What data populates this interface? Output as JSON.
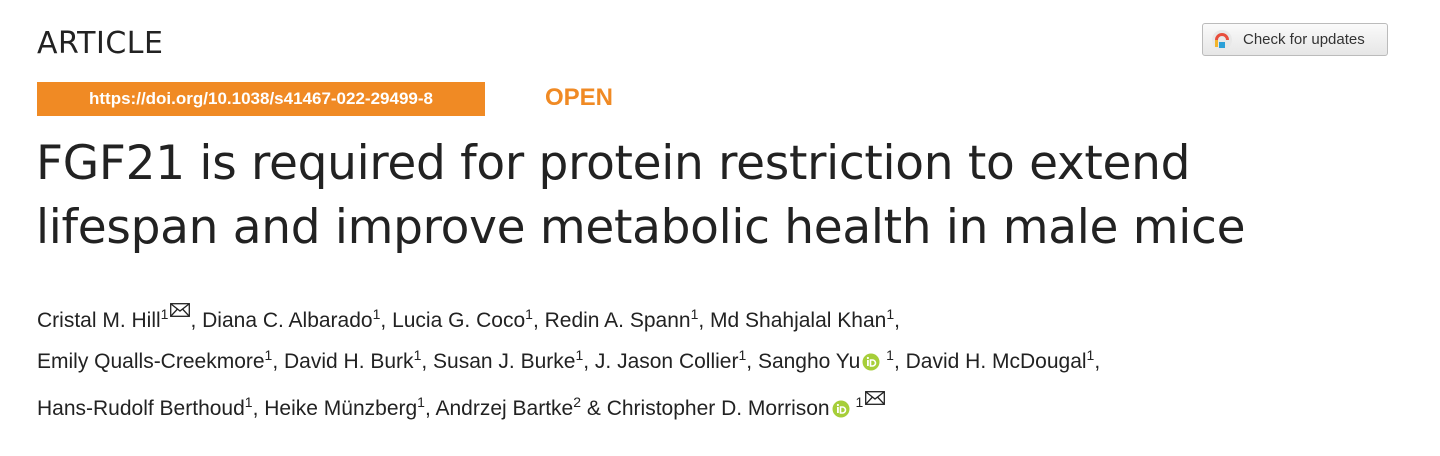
{
  "header": {
    "label": "ARTICLE",
    "doi": "https://doi.org/10.1038/s41467-022-29499-8",
    "access": "OPEN",
    "updates_button": "Check for updates"
  },
  "title_lines": [
    "FGF21 is required for protein restriction to extend",
    "lifespan and improve metabolic health in male mice"
  ],
  "author_lines": [
    [
      {
        "name": "Cristal M. Hill",
        "sup": "1",
        "email": true,
        "after": ", "
      },
      {
        "name": "Diana C. Albarado",
        "sup": "1",
        "after": ", "
      },
      {
        "name": "Lucia G. Coco",
        "sup": "1",
        "after": ", "
      },
      {
        "name": "Redin A. Spann",
        "sup": "1",
        "after": ", "
      },
      {
        "name": "Md Shahjalal Khan",
        "sup": "1",
        "after": ","
      }
    ],
    [
      {
        "name": "Emily Qualls-Creekmore",
        "sup": "1",
        "after": ", "
      },
      {
        "name": "David H. Burk",
        "sup": "1",
        "after": ", "
      },
      {
        "name": "Susan J. Burke",
        "sup": "1",
        "after": ", "
      },
      {
        "name": "J. Jason Collier",
        "sup": "1",
        "after": ", "
      },
      {
        "name": "Sangho Yu",
        "orcid": true,
        "sup": "1",
        "after": ", "
      },
      {
        "name": "David H. McDougal",
        "sup": "1",
        "after": ","
      }
    ],
    [
      {
        "name": "Hans-Rudolf Berthoud",
        "sup": "1",
        "after": ", "
      },
      {
        "name": "Heike Münzberg",
        "sup": "1",
        "after": ", "
      },
      {
        "name": "Andrzej Bartke",
        "sup": "2",
        "after": " & "
      },
      {
        "name": "Christopher D. Morrison",
        "orcid": true,
        "sup": "1",
        "email": true
      }
    ]
  ]
}
